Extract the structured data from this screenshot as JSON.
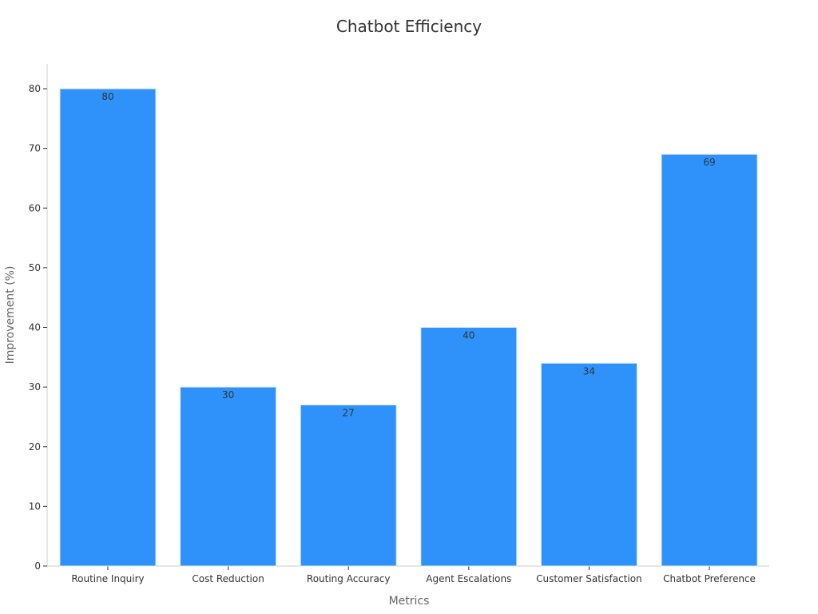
{
  "chart_data": {
    "type": "bar",
    "title": "Chatbot Efficiency",
    "xlabel": "Metrics",
    "ylabel": "Improvement (%)",
    "categories": [
      "Routine Inquiry",
      "Cost Reduction",
      "Routing Accuracy",
      "Agent Escalations",
      "Customer Satisfaction",
      "Chatbot Preference"
    ],
    "values": [
      80,
      30,
      27,
      40,
      34,
      69
    ],
    "ylim": [
      0,
      84
    ],
    "yticks": [
      0,
      10,
      20,
      30,
      40,
      50,
      60,
      70,
      80
    ],
    "bar_color": "#2f92fa",
    "bar_edge_color": "#d7e9fb",
    "grid": false,
    "legend": "none",
    "data_labels": true
  }
}
